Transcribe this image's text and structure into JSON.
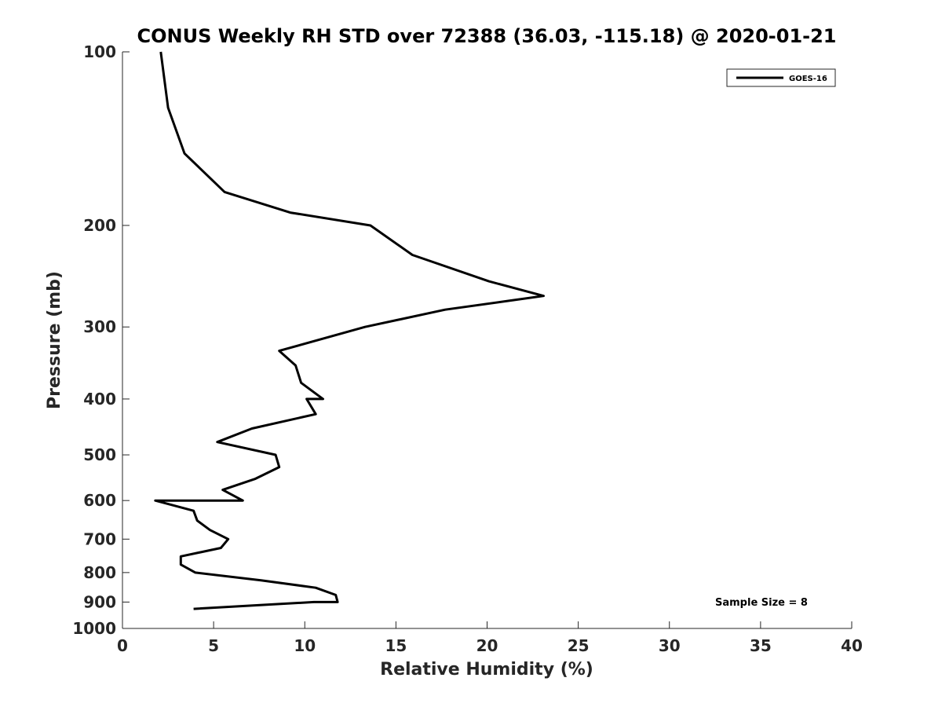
{
  "chart_data": {
    "type": "line",
    "title": "CONUS Weekly RH STD over 72388 (36.03, -115.18) @ 2020-01-21",
    "xlabel": "Relative Humidity (%)",
    "ylabel": "Pressure (mb)",
    "xlim": [
      0,
      40
    ],
    "ylim": [
      100,
      1000
    ],
    "y_scale": "log",
    "y_reversed": true,
    "grid": false,
    "legend_position": "top-right",
    "x_ticks": [
      "0",
      "5",
      "10",
      "15",
      "20",
      "25",
      "30",
      "35",
      "40"
    ],
    "y_ticks": [
      "100",
      "200",
      "300",
      "400",
      "500",
      "600",
      "700",
      "800",
      "900",
      "1000"
    ],
    "annotation": "Sample Size = 8",
    "series": [
      {
        "name": "GOES-16",
        "color": "#000000",
        "points": [
          {
            "rh": 2.1,
            "p": 100
          },
          {
            "rh": 2.5,
            "p": 125
          },
          {
            "rh": 3.4,
            "p": 150
          },
          {
            "rh": 5.6,
            "p": 175
          },
          {
            "rh": 9.2,
            "p": 190
          },
          {
            "rh": 13.6,
            "p": 200
          },
          {
            "rh": 15.9,
            "p": 225
          },
          {
            "rh": 20.1,
            "p": 250
          },
          {
            "rh": 23.1,
            "p": 265
          },
          {
            "rh": 17.7,
            "p": 280
          },
          {
            "rh": 13.3,
            "p": 300
          },
          {
            "rh": 8.6,
            "p": 330
          },
          {
            "rh": 9.5,
            "p": 350
          },
          {
            "rh": 9.8,
            "p": 375
          },
          {
            "rh": 11.0,
            "p": 400
          },
          {
            "rh": 10.1,
            "p": 400
          },
          {
            "rh": 10.6,
            "p": 425
          },
          {
            "rh": 7.1,
            "p": 450
          },
          {
            "rh": 5.2,
            "p": 475
          },
          {
            "rh": 8.4,
            "p": 500
          },
          {
            "rh": 8.6,
            "p": 525
          },
          {
            "rh": 7.3,
            "p": 550
          },
          {
            "rh": 5.5,
            "p": 575
          },
          {
            "rh": 6.6,
            "p": 600
          },
          {
            "rh": 1.8,
            "p": 600
          },
          {
            "rh": 3.9,
            "p": 625
          },
          {
            "rh": 4.1,
            "p": 650
          },
          {
            "rh": 4.8,
            "p": 675
          },
          {
            "rh": 5.8,
            "p": 700
          },
          {
            "rh": 5.8,
            "p": 700
          },
          {
            "rh": 5.4,
            "p": 725
          },
          {
            "rh": 3.2,
            "p": 750
          },
          {
            "rh": 3.2,
            "p": 775
          },
          {
            "rh": 4.0,
            "p": 800
          },
          {
            "rh": 7.6,
            "p": 825
          },
          {
            "rh": 10.6,
            "p": 850
          },
          {
            "rh": 11.7,
            "p": 875
          },
          {
            "rh": 11.8,
            "p": 900
          },
          {
            "rh": 10.5,
            "p": 900
          },
          {
            "rh": 3.9,
            "p": 925
          }
        ]
      }
    ]
  }
}
